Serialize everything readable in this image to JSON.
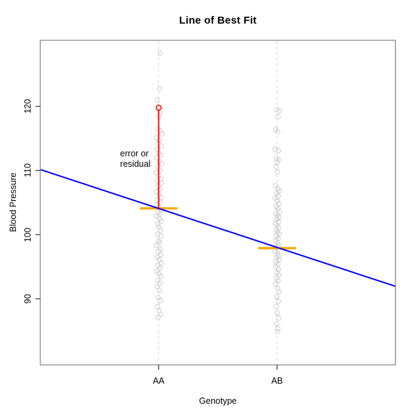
{
  "chart_data": {
    "type": "scatter",
    "title": "Line of Best Fit",
    "xlabel": "Genotype",
    "ylabel": "Blood Pressure",
    "xlim": [
      0,
      3
    ],
    "ylim": [
      79.7,
      130.3
    ],
    "y_ticks": [
      90,
      100,
      110,
      120
    ],
    "x_categories": [
      {
        "label": "AA",
        "x": 1
      },
      {
        "label": "AB",
        "x": 2
      }
    ],
    "grid": "off",
    "guide_lines": {
      "style": "dashed-vertical",
      "at": [
        1,
        2
      ]
    },
    "groups": [
      {
        "name": "AA",
        "x": 1,
        "mean": 104.1,
        "points": [
          [
            128.3,
            0.012
          ],
          [
            122.8,
            0.008
          ],
          [
            121.0,
            -0.012
          ],
          [
            118.9,
            0.01
          ],
          [
            118.4,
            -0.002
          ],
          [
            116.5,
            -0.008
          ],
          [
            116.2,
            0.015
          ],
          [
            115.7,
            0.028
          ],
          [
            115.1,
            -0.018
          ],
          [
            114.7,
            0.006
          ],
          [
            114.2,
            -0.004
          ],
          [
            113.8,
            0.022
          ],
          [
            113.3,
            -0.012
          ],
          [
            112.7,
            0.001
          ],
          [
            112.4,
            0.018
          ],
          [
            112.0,
            -0.016
          ],
          [
            111.4,
            0.005
          ],
          [
            111.1,
            0.025
          ],
          [
            110.6,
            -0.006
          ],
          [
            110.0,
            0.012
          ],
          [
            109.7,
            -0.022
          ],
          [
            109.2,
            0.002
          ],
          [
            108.7,
            0.017
          ],
          [
            108.4,
            -0.01
          ],
          [
            108.0,
            0.024
          ],
          [
            107.6,
            -0.003
          ],
          [
            107.1,
            0.009
          ],
          [
            106.7,
            -0.019
          ],
          [
            106.3,
            0.004
          ],
          [
            105.8,
            0.021
          ],
          [
            105.4,
            -0.008
          ],
          [
            105.1,
            0.013
          ],
          [
            104.6,
            -0.015
          ],
          [
            104.3,
            0.003
          ],
          [
            103.9,
            0.019
          ],
          [
            103.5,
            -0.005
          ],
          [
            103.2,
            0.011
          ],
          [
            102.9,
            -0.017
          ],
          [
            102.5,
            0.007
          ],
          [
            102.1,
            0.023
          ],
          [
            101.6,
            -0.009
          ],
          [
            101.2,
            0.001
          ],
          [
            100.7,
            0.015
          ],
          [
            100.1,
            -0.012
          ],
          [
            99.8,
            0.02
          ],
          [
            99.0,
            -0.004
          ],
          [
            98.8,
            0.008
          ],
          [
            98.3,
            -0.02
          ],
          [
            97.8,
            0.013
          ],
          [
            97.4,
            -0.001
          ],
          [
            96.9,
            0.018
          ],
          [
            96.5,
            -0.011
          ],
          [
            96.1,
            0.005
          ],
          [
            95.6,
            0.024
          ],
          [
            95.2,
            -0.006
          ],
          [
            94.8,
            0.012
          ],
          [
            94.3,
            -0.016
          ],
          [
            93.9,
            0.002
          ],
          [
            93.5,
            0.019
          ],
          [
            92.9,
            -0.007
          ],
          [
            92.4,
            0.01
          ],
          [
            91.9,
            -0.013
          ],
          [
            91.3,
            0.006
          ],
          [
            90.2,
            -0.002
          ],
          [
            89.7,
            0.014
          ],
          [
            88.8,
            -0.009
          ],
          [
            88.2,
            0.004
          ],
          [
            87.6,
            0.016
          ],
          [
            87.1,
            -0.005
          ]
        ]
      },
      {
        "name": "AB",
        "x": 2,
        "mean": 97.9,
        "points": [
          [
            119.5,
            -0.002
          ],
          [
            119.3,
            0.02
          ],
          [
            118.4,
            0.009
          ],
          [
            116.4,
            -0.012
          ],
          [
            116.1,
            0.006
          ],
          [
            113.3,
            -0.018
          ],
          [
            113.1,
            0.011
          ],
          [
            111.9,
            -0.005
          ],
          [
            111.7,
            0.014
          ],
          [
            111.3,
            0.001
          ],
          [
            110.6,
            -0.009
          ],
          [
            109.8,
            0.004
          ],
          [
            107.6,
            -0.014
          ],
          [
            107.2,
            0.007
          ],
          [
            106.8,
            0.018
          ],
          [
            106.5,
            -0.003
          ],
          [
            106.0,
            0.01
          ],
          [
            105.7,
            -0.016
          ],
          [
            105.3,
            0.002
          ],
          [
            104.8,
            0.015
          ],
          [
            104.4,
            -0.007
          ],
          [
            104.1,
            0.008
          ],
          [
            103.6,
            0.021
          ],
          [
            103.3,
            -0.011
          ],
          [
            103.0,
            0.005
          ],
          [
            102.7,
            0.017
          ],
          [
            102.4,
            -0.002
          ],
          [
            102.0,
            0.012
          ],
          [
            101.7,
            -0.015
          ],
          [
            101.4,
            0.0
          ],
          [
            101.1,
            0.013
          ],
          [
            100.7,
            -0.008
          ],
          [
            100.4,
            0.006
          ],
          [
            100.1,
            0.019
          ],
          [
            99.8,
            -0.004
          ],
          [
            99.4,
            0.009
          ],
          [
            99.1,
            -0.013
          ],
          [
            98.7,
            0.003
          ],
          [
            98.3,
            0.016
          ],
          [
            98.0,
            -0.006
          ],
          [
            97.7,
            0.011
          ],
          [
            97.4,
            -0.017
          ],
          [
            97.0,
            0.004
          ],
          [
            96.7,
            0.014
          ],
          [
            96.4,
            -0.001
          ],
          [
            96.1,
            0.018
          ],
          [
            95.8,
            -0.01
          ],
          [
            95.4,
            0.007
          ],
          [
            95.0,
            -0.014
          ],
          [
            94.6,
            0.012
          ],
          [
            94.1,
            0.0
          ],
          [
            93.7,
            0.015
          ],
          [
            93.3,
            -0.006
          ],
          [
            92.8,
            0.009
          ],
          [
            92.3,
            -0.012
          ],
          [
            91.7,
            0.005
          ],
          [
            91.1,
            0.017
          ],
          [
            90.3,
            -0.003
          ],
          [
            89.6,
            0.01
          ],
          [
            88.8,
            -0.008
          ],
          [
            87.8,
            0.002
          ],
          [
            87.0,
            0.013
          ],
          [
            86.1,
            -0.005
          ],
          [
            85.4,
            0.007
          ],
          [
            84.9,
            0.001
          ]
        ]
      }
    ],
    "mean_segments": {
      "half_width": 0.16
    },
    "regression_line": {
      "x1": 0,
      "y1": 110.15,
      "x2": 3,
      "y2": 91.95
    },
    "highlight_point": {
      "x": 1,
      "y": 119.8
    },
    "residual_segment": {
      "x": 1,
      "y_from": 119.8,
      "y_to": 104.1
    },
    "annotations": {
      "lines": [
        "error or",
        "residual"
      ],
      "x": 0.674,
      "y": 112.55
    },
    "colors": {
      "background": "#ffffff",
      "box": "#808080",
      "tick": "#333333",
      "text": "#000000",
      "points": "#c6c6c6",
      "guide": "#dddddd",
      "regression": "#0000ff",
      "mean": "#ffa500",
      "residual": "#ff0000"
    }
  }
}
